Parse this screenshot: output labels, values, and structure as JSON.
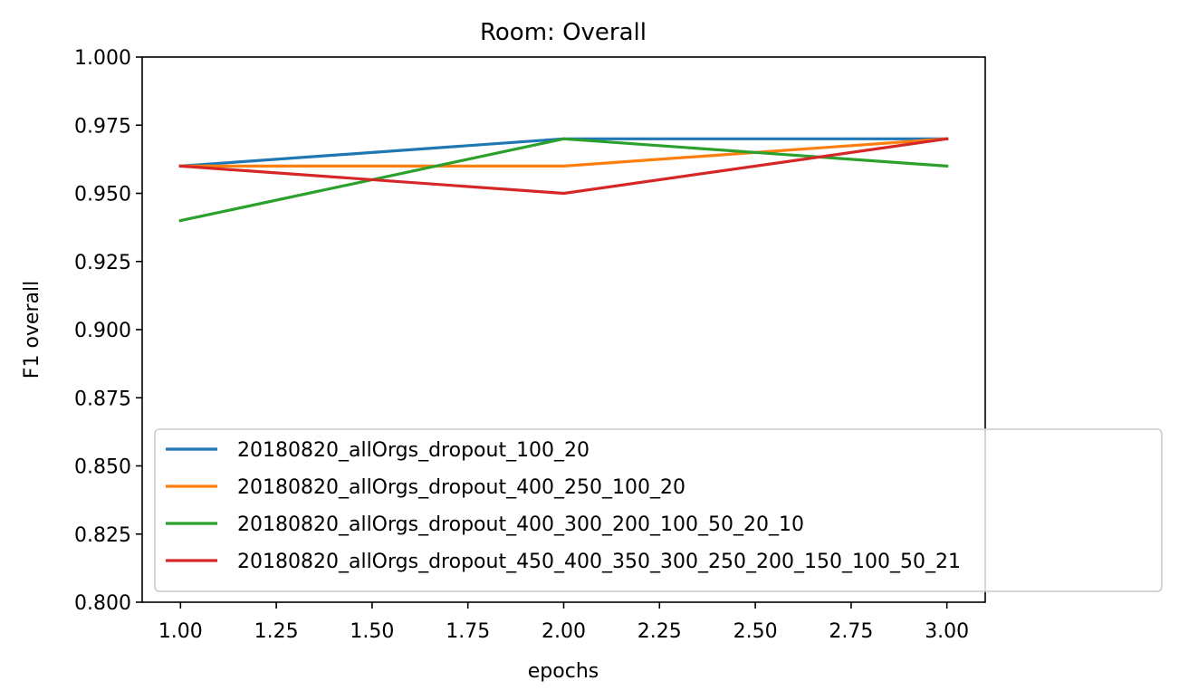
{
  "chart_data": {
    "type": "line",
    "title": "Room: Overall",
    "xlabel": "epochs",
    "ylabel": "F1 overall",
    "xlim": [
      0.9,
      3.1
    ],
    "ylim": [
      0.8,
      1.0
    ],
    "xticks": [
      1.0,
      1.25,
      1.5,
      1.75,
      2.0,
      2.25,
      2.5,
      2.75,
      3.0
    ],
    "xtick_labels": [
      "1.00",
      "1.25",
      "1.50",
      "1.75",
      "2.00",
      "2.25",
      "2.50",
      "2.75",
      "3.00"
    ],
    "yticks": [
      0.8,
      0.825,
      0.85,
      0.875,
      0.9,
      0.925,
      0.95,
      0.975,
      1.0
    ],
    "ytick_labels": [
      "0.800",
      "0.825",
      "0.850",
      "0.875",
      "0.900",
      "0.925",
      "0.950",
      "0.975",
      "1.000"
    ],
    "grid": false,
    "legend_position": "lower-left",
    "x": [
      1,
      2,
      3
    ],
    "series": [
      {
        "name": "20180820_allOrgs_dropout_100_20",
        "values": [
          0.96,
          0.97,
          0.97
        ],
        "color": "#1f77b4"
      },
      {
        "name": "20180820_allOrgs_dropout_400_250_100_20",
        "values": [
          0.96,
          0.96,
          0.97
        ],
        "color": "#ff7f0e"
      },
      {
        "name": "20180820_allOrgs_dropout_400_300_200_100_50_20_10",
        "values": [
          0.94,
          0.97,
          0.96
        ],
        "color": "#2ca02c"
      },
      {
        "name": "20180820_allOrgs_dropout_450_400_350_300_250_200_150_100_50_21",
        "values": [
          0.96,
          0.95,
          0.97
        ],
        "color": "#d62728"
      }
    ]
  }
}
